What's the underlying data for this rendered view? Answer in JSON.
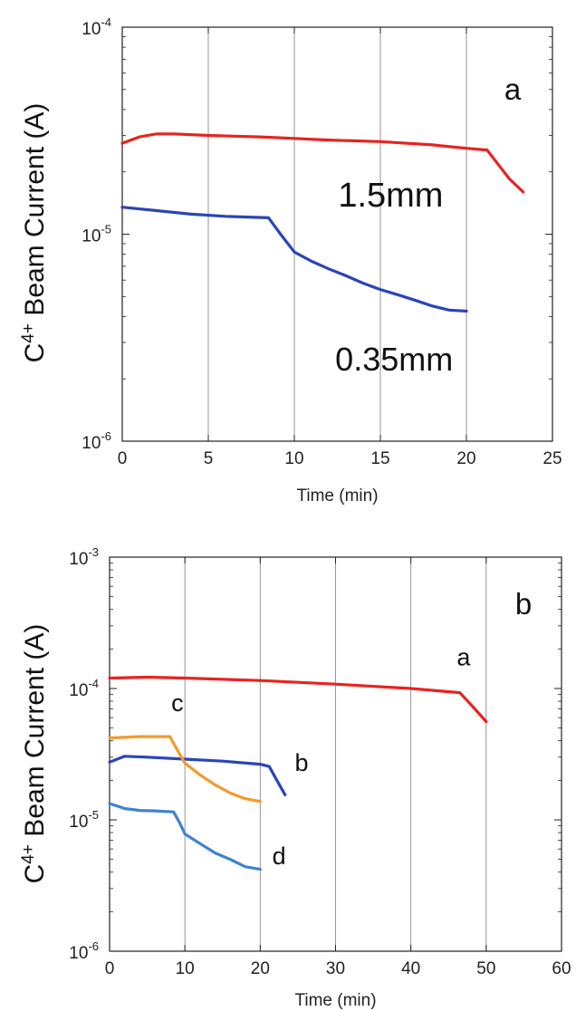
{
  "chart_data": [
    {
      "type": "line",
      "panel_label": "a",
      "xlabel": "Time (min)",
      "ylabel": "C4+ Beam Current (A)",
      "ylabel_base": "C",
      "ylabel_sup": "4+",
      "ylabel_rest": " Beam Current (A)",
      "xlim": [
        0,
        25
      ],
      "ylim": [
        1e-06,
        0.0001
      ],
      "yscale": "log",
      "xticks": [
        0,
        5,
        10,
        15,
        20,
        25
      ],
      "xtick_labels": [
        "0",
        "5",
        "10",
        "15",
        "20",
        "25"
      ],
      "yticks": [
        {
          "value": 1e-06,
          "base": "10",
          "exp": "-6"
        },
        {
          "value": 1e-05,
          "base": "10",
          "exp": "-5"
        },
        {
          "value": 0.0001,
          "base": "10",
          "exp": "-4"
        }
      ],
      "grid": "vertical",
      "series": [
        {
          "name": "1.5mm",
          "color": "#e8231f",
          "points": [
            [
              0,
              2.75e-05
            ],
            [
              1,
              2.95e-05
            ],
            [
              2,
              3.05e-05
            ],
            [
              3,
              3.05e-05
            ],
            [
              5,
              3e-05
            ],
            [
              8,
              2.95e-05
            ],
            [
              10,
              2.9e-05
            ],
            [
              12,
              2.85e-05
            ],
            [
              15,
              2.8e-05
            ],
            [
              18,
              2.7e-05
            ],
            [
              20,
              2.6e-05
            ],
            [
              21.2,
              2.55e-05
            ],
            [
              21.8,
              2.2e-05
            ],
            [
              22.5,
              1.85e-05
            ],
            [
              23.3,
              1.6e-05
            ]
          ]
        },
        {
          "name": "0.35mm",
          "color": "#2a45b8",
          "points": [
            [
              0,
              1.35e-05
            ],
            [
              2,
              1.3e-05
            ],
            [
              4,
              1.25e-05
            ],
            [
              6,
              1.22e-05
            ],
            [
              8.5,
              1.2e-05
            ],
            [
              9.2,
              1e-05
            ],
            [
              10,
              8.2e-06
            ],
            [
              11,
              7.4e-06
            ],
            [
              12,
              6.8e-06
            ],
            [
              13,
              6.3e-06
            ],
            [
              14,
              5.8e-06
            ],
            [
              15,
              5.4e-06
            ],
            [
              16,
              5.1e-06
            ],
            [
              17,
              4.8e-06
            ],
            [
              18,
              4.5e-06
            ],
            [
              19,
              4.3e-06
            ],
            [
              20,
              4.25e-06
            ]
          ]
        }
      ],
      "annotations": [
        {
          "text": "1.5mm",
          "x": 15.6,
          "y": 1.36e-05
        },
        {
          "text": "0.35mm",
          "x": 15.8,
          "y": 2.2e-06
        }
      ]
    },
    {
      "type": "line",
      "panel_label": "b",
      "xlabel": "Time (min)",
      "ylabel": "C4+ Beam Current (A)",
      "ylabel_base": "C",
      "ylabel_sup": "4+",
      "ylabel_rest": " Beam Current (A)",
      "xlim": [
        0,
        60
      ],
      "ylim": [
        1e-06,
        0.001
      ],
      "yscale": "log",
      "xticks": [
        0,
        10,
        20,
        30,
        40,
        50,
        60
      ],
      "xtick_labels": [
        "0",
        "10",
        "20",
        "30",
        "40",
        "50",
        "60"
      ],
      "yticks": [
        {
          "value": 1e-06,
          "base": "10",
          "exp": "-6"
        },
        {
          "value": 1e-05,
          "base": "10",
          "exp": "-5"
        },
        {
          "value": 0.0001,
          "base": "10",
          "exp": "-4"
        },
        {
          "value": 0.001,
          "base": "10",
          "exp": "-3"
        }
      ],
      "grid": "vertical",
      "series": [
        {
          "name": "a",
          "color": "#e8231f",
          "points": [
            [
              0,
              0.00012
            ],
            [
              5,
              0.000122
            ],
            [
              10,
              0.00012
            ],
            [
              20,
              0.000115
            ],
            [
              30,
              0.000108
            ],
            [
              40,
              0.0001
            ],
            [
              46.5,
              9.3e-05
            ],
            [
              48,
              7.5e-05
            ],
            [
              50,
              5.6e-05
            ]
          ]
        },
        {
          "name": "b",
          "color": "#2a45b8",
          "points": [
            [
              0,
              2.75e-05
            ],
            [
              2,
              3.05e-05
            ],
            [
              5,
              3e-05
            ],
            [
              10,
              2.9e-05
            ],
            [
              15,
              2.8e-05
            ],
            [
              20,
              2.65e-05
            ],
            [
              21.2,
              2.55e-05
            ],
            [
              22,
              2.1e-05
            ],
            [
              23.3,
              1.55e-05
            ]
          ]
        },
        {
          "name": "c",
          "color": "#f39a2b",
          "points": [
            [
              0,
              4.2e-05
            ],
            [
              4,
              4.3e-05
            ],
            [
              8,
              4.3e-05
            ],
            [
              9,
              3.4e-05
            ],
            [
              10,
              2.7e-05
            ],
            [
              12,
              2.2e-05
            ],
            [
              14,
              1.85e-05
            ],
            [
              16,
              1.6e-05
            ],
            [
              18,
              1.45e-05
            ],
            [
              20,
              1.38e-05
            ]
          ]
        },
        {
          "name": "d",
          "color": "#3f83d1",
          "points": [
            [
              0,
              1.33e-05
            ],
            [
              2,
              1.22e-05
            ],
            [
              4,
              1.18e-05
            ],
            [
              6,
              1.17e-05
            ],
            [
              8.5,
              1.15e-05
            ],
            [
              9.3,
              9.5e-06
            ],
            [
              10,
              7.8e-06
            ],
            [
              12,
              6.6e-06
            ],
            [
              14,
              5.6e-06
            ],
            [
              16,
              5e-06
            ],
            [
              18,
              4.4e-06
            ],
            [
              20,
              4.2e-06
            ]
          ]
        }
      ],
      "annotations": [
        {
          "text": "a",
          "x": 47,
          "y": 0.00015
        },
        {
          "text": "c",
          "x": 9,
          "y": 6.7e-05
        },
        {
          "text": "b",
          "x": 25.5,
          "y": 2.35e-05
        },
        {
          "text": "d",
          "x": 22.5,
          "y": 4.6e-06
        }
      ]
    }
  ]
}
